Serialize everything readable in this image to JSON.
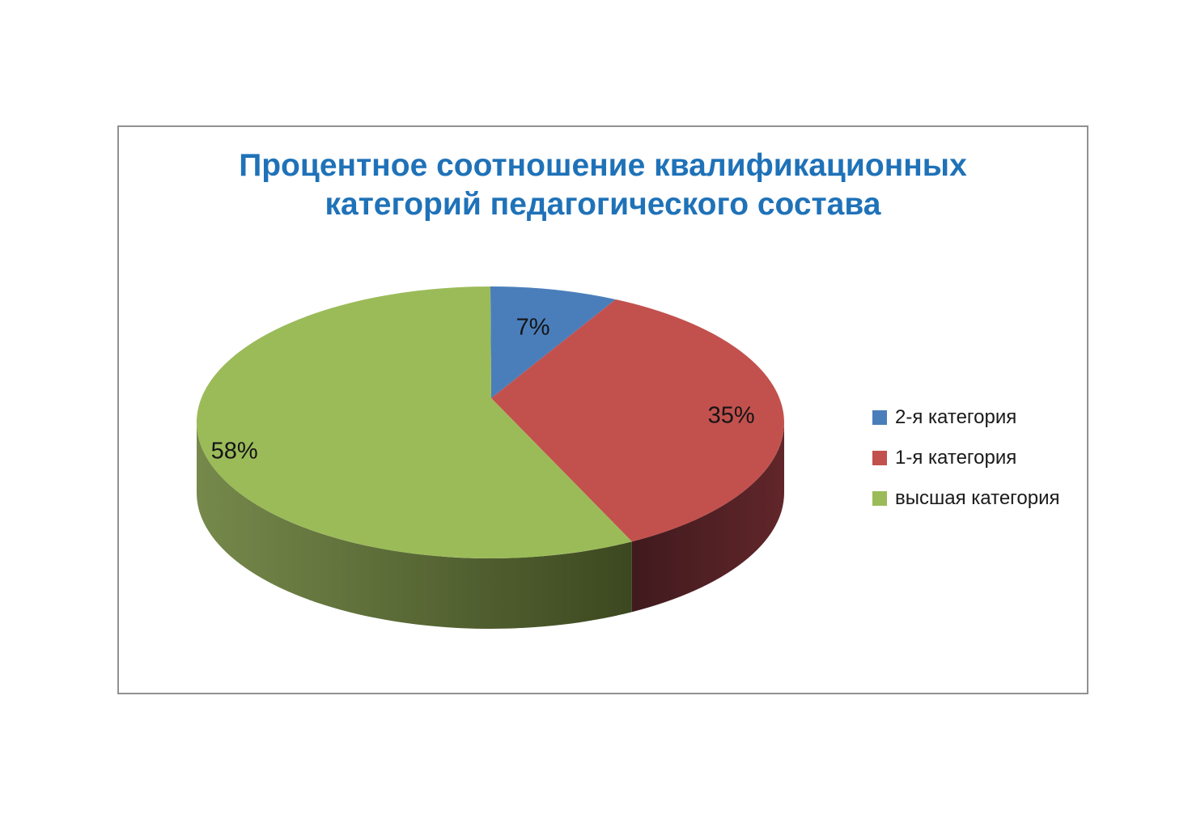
{
  "title": {
    "line1": "Процентное соотношение квалификационных",
    "line2": "категорий педагогического состава",
    "color": "#1F72B8"
  },
  "chart_data": {
    "type": "pie",
    "is_3d": true,
    "title": "Процентное соотношение квалификационных категорий педагогического состава",
    "categories": [
      "2-я категория",
      "1-я категория",
      "высшая категория"
    ],
    "values": [
      7,
      35,
      58
    ],
    "unit": "%",
    "data_labels": [
      "7%",
      "35%",
      "58%"
    ],
    "colors": [
      "#4A7EBB",
      "#C2514E",
      "#9BBB59"
    ],
    "side_gradients": [
      null,
      [
        "#401A1E",
        "#61262A"
      ],
      [
        "#76894B",
        "#3C4820"
      ]
    ],
    "label_color": "#141414",
    "legend_position": "right",
    "start_angle_deg": 0,
    "direction": "clockwise",
    "legend_entries": [
      "2-я категория",
      "1-я категория",
      "высшая категория"
    ]
  },
  "legend": {
    "items": [
      {
        "label": "2-я категория",
        "color": "#4A7EBB"
      },
      {
        "label": "1-я категория",
        "color": "#C2514E"
      },
      {
        "label": "высшая категория",
        "color": "#9BBB59"
      }
    ]
  }
}
